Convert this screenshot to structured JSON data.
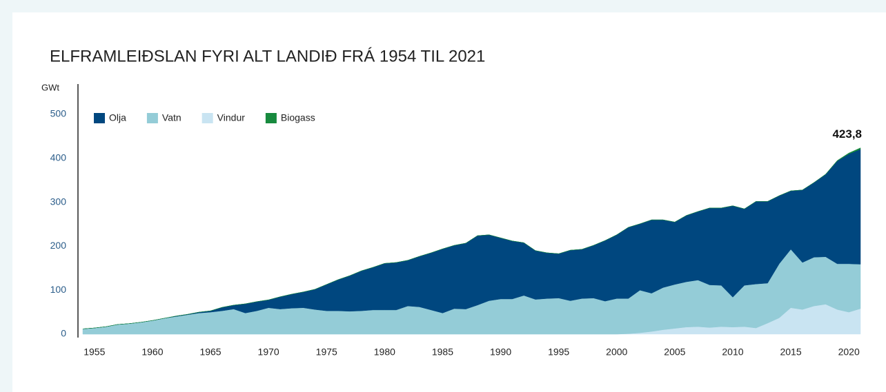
{
  "chart_data": {
    "type": "stacked_area",
    "title": "ELFRAMLEIÐSLAN FYRI ALT LANDIÐ FRÁ 1954 TIL 2021",
    "y_label": "GWt",
    "annotation": "423,8",
    "x": [
      1954,
      1955,
      1956,
      1957,
      1958,
      1959,
      1960,
      1961,
      1962,
      1963,
      1964,
      1965,
      1966,
      1967,
      1968,
      1969,
      1970,
      1971,
      1972,
      1973,
      1974,
      1975,
      1976,
      1977,
      1978,
      1979,
      1980,
      1981,
      1982,
      1983,
      1984,
      1985,
      1986,
      1987,
      1988,
      1989,
      1990,
      1991,
      1992,
      1993,
      1994,
      1995,
      1996,
      1997,
      1998,
      1999,
      2000,
      2001,
      2002,
      2003,
      2004,
      2005,
      2006,
      2007,
      2008,
      2009,
      2010,
      2011,
      2012,
      2013,
      2014,
      2015,
      2016,
      2017,
      2018,
      2019,
      2020,
      2021
    ],
    "xlim": [
      1954,
      2021
    ],
    "xticks": [
      1955,
      1960,
      1965,
      1970,
      1975,
      1980,
      1985,
      1990,
      1995,
      2000,
      2005,
      2010,
      2015,
      2020
    ],
    "ylim": [
      0,
      500
    ],
    "yticks": [
      0,
      100,
      200,
      300,
      400,
      500
    ],
    "series": [
      {
        "name": "Vindur",
        "color": "#c9e4f2",
        "values": [
          0,
          0,
          0,
          0,
          0,
          0,
          0,
          0,
          0,
          0,
          0,
          0,
          0,
          0,
          0,
          0,
          0,
          0,
          0,
          0,
          0,
          0,
          0,
          0,
          0,
          0,
          0,
          0,
          0,
          0,
          0,
          0,
          0,
          0,
          0,
          0,
          0,
          0,
          0,
          0,
          0,
          0,
          0,
          0,
          0,
          0,
          0,
          1,
          3,
          6,
          10,
          13,
          16,
          17,
          15,
          17,
          16,
          17,
          14,
          25,
          37,
          60,
          56,
          64,
          68,
          56,
          50,
          58
        ]
      },
      {
        "name": "Vatn",
        "color": "#94ccd7",
        "values": [
          12,
          14,
          17,
          22,
          24,
          27,
          31,
          36,
          40,
          44,
          48,
          50,
          53,
          57,
          48,
          53,
          60,
          57,
          59,
          60,
          56,
          53,
          53,
          52,
          53,
          55,
          55,
          55,
          64,
          62,
          55,
          48,
          58,
          57,
          66,
          76,
          80,
          80,
          88,
          79,
          81,
          82,
          76,
          81,
          82,
          75,
          81,
          80,
          97,
          87,
          96,
          100,
          103,
          106,
          97,
          94,
          68,
          94,
          100,
          91,
          123,
          133,
          107,
          111,
          108,
          104,
          110,
          101
        ]
      },
      {
        "name": "Olja",
        "color": "#00477f",
        "values": [
          0,
          0,
          0,
          0,
          0,
          0,
          0,
          0,
          1,
          1,
          2,
          3,
          8,
          9,
          21,
          21,
          18,
          28,
          32,
          36,
          46,
          60,
          71,
          81,
          91,
          97,
          106,
          108,
          104,
          115,
          130,
          146,
          144,
          150,
          158,
          150,
          139,
          132,
          120,
          111,
          104,
          101,
          115,
          112,
          120,
          138,
          145,
          162,
          151,
          167,
          154,
          142,
          151,
          156,
          175,
          176,
          208,
          174,
          188,
          186,
          155,
          133,
          165,
          170,
          187.5,
          234,
          250,
          261.8
        ]
      },
      {
        "name": "Biogass",
        "color": "#178a3e",
        "values": [
          0,
          0,
          0,
          0,
          0,
          0,
          0,
          0,
          0,
          0,
          0,
          0,
          0,
          0,
          0,
          0,
          0,
          0,
          0,
          0,
          0,
          0,
          0,
          0,
          0,
          0,
          0,
          0,
          0,
          0,
          0,
          0,
          0,
          0,
          0,
          0,
          0,
          0,
          0,
          0,
          0,
          0,
          0,
          0,
          0,
          0,
          0,
          0,
          0,
          0,
          0,
          0,
          0,
          0,
          0,
          0,
          0,
          0,
          0,
          0,
          0,
          0,
          0,
          0,
          0.5,
          1,
          2,
          3
        ]
      }
    ]
  }
}
